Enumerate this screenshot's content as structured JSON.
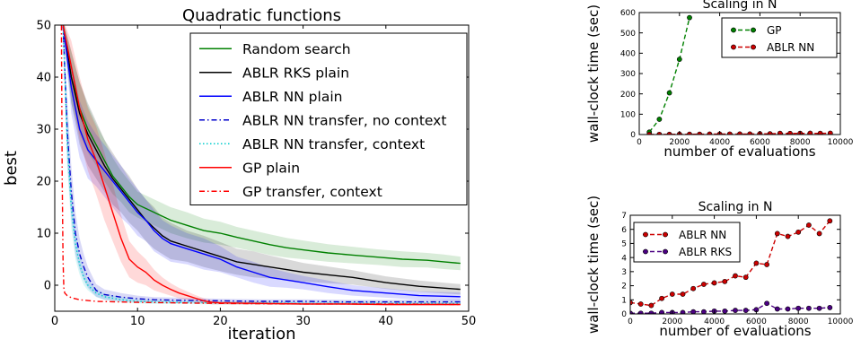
{
  "chart_data": [
    {
      "id": "quad",
      "type": "line",
      "title": "Quadratic functions",
      "xlabel": "iteration",
      "ylabel": "best",
      "xlim": [
        0,
        50
      ],
      "ylim": [
        -5,
        50
      ],
      "xticks": [
        0,
        10,
        20,
        30,
        40,
        50
      ],
      "yticks": [
        0,
        10,
        20,
        30,
        40,
        50
      ],
      "legend_position": "top-right",
      "series": [
        {
          "name": "Random search",
          "color": "#008000",
          "dash": "solid",
          "band": true,
          "x": [
            1,
            2,
            3,
            4,
            5,
            6,
            7,
            8,
            9,
            10,
            12,
            14,
            16,
            18,
            20,
            22,
            24,
            26,
            28,
            30,
            33,
            36,
            39,
            42,
            45,
            47,
            49
          ],
          "y": [
            50,
            40,
            34,
            30,
            27,
            24,
            21,
            19,
            17,
            15.5,
            14,
            12.5,
            11.5,
            10.5,
            10,
            9.2,
            8.5,
            7.8,
            7.2,
            6.8,
            6.2,
            5.8,
            5.4,
            5.0,
            4.8,
            4.5,
            4.2
          ],
          "err": [
            1,
            5,
            5,
            4.5,
            4,
            4,
            3.5,
            3,
            3,
            2.5,
            2.5,
            2.5,
            2.5,
            2.3,
            2.2,
            2,
            2,
            2,
            1.9,
            1.8,
            1.7,
            1.6,
            1.5,
            1.5,
            1.4,
            1.4,
            1.3
          ]
        },
        {
          "name": "ABLR RKS plain",
          "color": "#000000",
          "dash": "solid",
          "band": true,
          "x": [
            1,
            2,
            3,
            4,
            5,
            6,
            7,
            8,
            9,
            10,
            11,
            12,
            13,
            14,
            16,
            18,
            20,
            22,
            24,
            26,
            28,
            30,
            33,
            36,
            40,
            44,
            49
          ],
          "y": [
            50,
            40,
            33,
            29,
            26,
            23,
            20.5,
            18.5,
            16.5,
            14.5,
            12.5,
            11,
            9.5,
            8.5,
            7.5,
            6.5,
            5.5,
            4.5,
            4,
            3.5,
            3,
            2.5,
            2,
            1.5,
            0.5,
            -0.2,
            -0.8
          ],
          "err": [
            1,
            5,
            6,
            6,
            5.5,
            5,
            5,
            4.5,
            4.5,
            4,
            4,
            4,
            3.5,
            3.5,
            3,
            3,
            2.8,
            2.5,
            2.5,
            2.2,
            2,
            1.8,
            1.6,
            1.4,
            1.2,
            1.1,
            1.0
          ]
        },
        {
          "name": "ABLR NN plain",
          "color": "#0000ff",
          "dash": "solid",
          "band": true,
          "x": [
            1,
            2,
            3,
            4,
            5,
            6,
            7,
            8,
            9,
            10,
            11,
            12,
            13,
            14,
            16,
            18,
            20,
            22,
            24,
            26,
            28,
            30,
            33,
            36,
            40,
            44,
            49
          ],
          "y": [
            50,
            38,
            30,
            26,
            24,
            22,
            20,
            18,
            16,
            14,
            12.5,
            10.5,
            9,
            8,
            7,
            6,
            5,
            3.5,
            2.5,
            1.5,
            1,
            0.5,
            -0.3,
            -1,
            -1.5,
            -2,
            -2.2
          ],
          "err": [
            1,
            5,
            5.5,
            5.5,
            5,
            5,
            5,
            5,
            4.5,
            4.5,
            4,
            4,
            3.5,
            3.5,
            3,
            3,
            2.5,
            2,
            2,
            1.8,
            1.5,
            1.3,
            1.2,
            1.0,
            0.9,
            0.8,
            0.8
          ]
        },
        {
          "name": "ABLR NN transfer, no context",
          "color": "#0000cc",
          "dash": "dashdot",
          "band": true,
          "x": [
            1,
            1.5,
            2,
            2.5,
            3,
            3.5,
            4,
            5,
            6,
            8,
            10,
            12,
            15,
            20,
            25,
            30,
            35,
            40,
            45,
            49
          ],
          "y": [
            50,
            30,
            18,
            10,
            6,
            3.5,
            1.5,
            -1,
            -1.8,
            -2.3,
            -2.6,
            -2.8,
            -2.9,
            -3,
            -3.1,
            -3.1,
            -3.2,
            -3.2,
            -3.2,
            -3.2
          ],
          "err": [
            1,
            6,
            5,
            4,
            3,
            2.5,
            2,
            1.2,
            1,
            0.8,
            0.6,
            0.5,
            0.5,
            0.4,
            0.4,
            0.4,
            0.4,
            0.4,
            0.4,
            0.4
          ]
        },
        {
          "name": "ABLR NN transfer, context",
          "color": "#00cccc",
          "dash": "dotted",
          "band": true,
          "x": [
            1,
            1.5,
            2,
            2.5,
            3,
            3.5,
            4,
            5,
            6,
            8,
            10,
            12,
            15,
            20,
            25,
            30,
            35,
            40,
            45,
            49
          ],
          "y": [
            50,
            28,
            15,
            8,
            4,
            1.5,
            0,
            -1.5,
            -2.2,
            -2.8,
            -3.1,
            -3.2,
            -3.3,
            -3.4,
            -3.4,
            -3.5,
            -3.5,
            -3.5,
            -3.5,
            -3.5
          ],
          "err": [
            1,
            5,
            4,
            3,
            2,
            1.5,
            1,
            0.8,
            0.6,
            0.5,
            0.4,
            0.4,
            0.3,
            0.3,
            0.3,
            0.3,
            0.3,
            0.3,
            0.3,
            0.3
          ]
        },
        {
          "name": "GP plain",
          "color": "#ff0000",
          "dash": "solid",
          "band": true,
          "x": [
            1,
            2,
            3,
            4,
            5,
            6,
            7,
            8,
            9,
            10,
            11,
            12,
            13,
            14,
            15,
            16,
            17,
            18,
            19,
            20,
            25,
            30,
            35,
            40,
            45,
            49
          ],
          "y": [
            50,
            42,
            34,
            28,
            24,
            19,
            14,
            9,
            5,
            3.5,
            2.5,
            1,
            0,
            -0.8,
            -1.5,
            -2,
            -2.5,
            -3,
            -3.3,
            -3.4,
            -3.5,
            -3.6,
            -3.6,
            -3.7,
            -3.7,
            -3.7
          ],
          "err": [
            1,
            5,
            6,
            6,
            6.5,
            6.5,
            5.5,
            4.5,
            3.5,
            3,
            2.5,
            2,
            1.5,
            1.2,
            1,
            0.8,
            0.6,
            0.5,
            0.4,
            0.3,
            0.3,
            0.2,
            0.2,
            0.2,
            0.2,
            0.2
          ]
        },
        {
          "name": "GP transfer, context",
          "color": "#ff0000",
          "dash": "dashdot",
          "band": false,
          "x": [
            0.8,
            0.9,
            1,
            1.1,
            1.2,
            1.5,
            2,
            3,
            5,
            10,
            20,
            30,
            40,
            49
          ],
          "y": [
            50,
            20,
            5,
            -0.5,
            -1.5,
            -2,
            -2.4,
            -2.8,
            -3.1,
            -3.3,
            -3.5,
            -3.6,
            -3.6,
            -3.7
          ],
          "err": []
        }
      ]
    },
    {
      "id": "scalingA",
      "type": "line",
      "title": "Scaling in N",
      "xlabel": "number of evaluations",
      "ylabel": "wall-clock time (sec)",
      "xlim": [
        0,
        10000
      ],
      "ylim": [
        0,
        600
      ],
      "xticks": [
        0,
        2000,
        4000,
        6000,
        8000,
        10000
      ],
      "yticks": [
        0,
        100,
        200,
        300,
        400,
        500,
        600
      ],
      "legend_position": "top-right",
      "series": [
        {
          "name": "GP",
          "color": "#008000",
          "dash": "dashed",
          "markers": true,
          "x": [
            500,
            1000,
            1500,
            2000,
            2500
          ],
          "y": [
            12,
            75,
            205,
            370,
            575
          ]
        },
        {
          "name": "ABLR NN",
          "color": "#cc0000",
          "dash": "dashed",
          "markers": true,
          "x": [
            500,
            1000,
            1500,
            2000,
            2500,
            3000,
            3500,
            4000,
            4500,
            5000,
            5500,
            6000,
            6500,
            7000,
            7500,
            8000,
            8500,
            9000,
            9500
          ],
          "y": [
            0.6,
            0.7,
            1.1,
            1.4,
            1.4,
            1.7,
            2.1,
            2.2,
            2.3,
            2.7,
            2.6,
            3.6,
            3.5,
            5.7,
            5.4,
            5.8,
            6.3,
            5.8,
            6.6
          ]
        }
      ]
    },
    {
      "id": "scalingB",
      "type": "line",
      "title": "Scaling in N",
      "xlabel": "number of evaluations",
      "ylabel": "wall-clock time (sec)",
      "xlim": [
        0,
        10000
      ],
      "ylim": [
        0,
        7
      ],
      "xticks": [
        0,
        2000,
        4000,
        6000,
        8000,
        10000
      ],
      "yticks": [
        0,
        1,
        2,
        3,
        4,
        5,
        6,
        7
      ],
      "legend_position": "top-left",
      "series": [
        {
          "name": "ABLR NN",
          "color": "#cc0000",
          "dash": "dashed",
          "markers": true,
          "x": [
            0,
            500,
            1000,
            1500,
            2000,
            2500,
            3000,
            3500,
            4000,
            4500,
            5000,
            5500,
            6000,
            6500,
            7000,
            7500,
            8000,
            8500,
            9000,
            9500
          ],
          "y": [
            0.8,
            0.7,
            0.6,
            1.1,
            1.4,
            1.4,
            1.8,
            2.1,
            2.2,
            2.3,
            2.7,
            2.6,
            3.6,
            3.5,
            5.7,
            5.5,
            5.8,
            6.3,
            5.7,
            6.6
          ]
        },
        {
          "name": "ABLR RKS",
          "color": "#4b0082",
          "dash": "dashed",
          "markers": true,
          "x": [
            0,
            500,
            1000,
            1500,
            2000,
            2500,
            3000,
            3500,
            4000,
            4500,
            5000,
            5500,
            6000,
            6500,
            7000,
            7500,
            8000,
            8500,
            9000,
            9500
          ],
          "y": [
            0.05,
            0.05,
            0.05,
            0.1,
            0.1,
            0.1,
            0.15,
            0.15,
            0.2,
            0.2,
            0.25,
            0.25,
            0.3,
            0.75,
            0.35,
            0.35,
            0.4,
            0.4,
            0.4,
            0.45
          ]
        }
      ]
    }
  ]
}
